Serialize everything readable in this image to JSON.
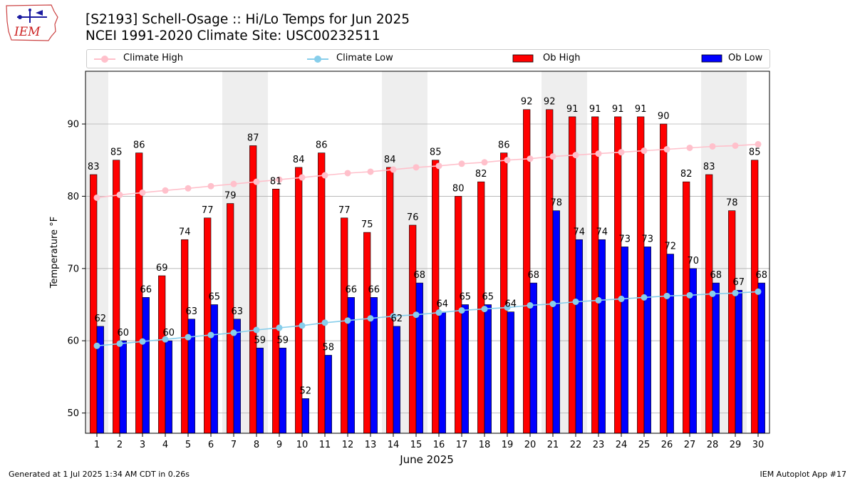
{
  "header": {
    "title_line1": "[S2193] Schell-Osage :: Hi/Lo Temps for Jun 2025",
    "title_line2": "NCEI 1991-2020 Climate Site: USC00232511",
    "logo_text": "IEM"
  },
  "footer": {
    "generated": "Generated at 1 Jul 2025 1:34 AM CDT in 0.26s",
    "app": "IEM Autoplot App #17"
  },
  "colors": {
    "ob_high": "#ff0000",
    "ob_low": "#0000ff",
    "climate_high": "#ffc0cb",
    "climate_low": "#87ceeb",
    "weekend_band": "#eeeeee",
    "grid": "#b0b0b0"
  },
  "chart_data": {
    "type": "bar",
    "title": "[S2193] Schell-Osage :: Hi/Lo Temps for Jun 2025",
    "xlabel": "June 2025",
    "ylabel": "Temperature °F",
    "ylim": [
      47.2,
      97.3
    ],
    "yticks": [
      50,
      60,
      70,
      80,
      90
    ],
    "grid": "y",
    "legend": "top",
    "categories": [
      "1",
      "2",
      "3",
      "4",
      "5",
      "6",
      "7",
      "8",
      "9",
      "10",
      "11",
      "12",
      "13",
      "14",
      "15",
      "16",
      "17",
      "18",
      "19",
      "20",
      "21",
      "22",
      "23",
      "24",
      "25",
      "26",
      "27",
      "28",
      "29",
      "30"
    ],
    "shaded_days": [
      1,
      7,
      8,
      14,
      15,
      21,
      22,
      28,
      29
    ],
    "series": [
      {
        "name": "Ob High",
        "type": "bar",
        "values": [
          83,
          85,
          86,
          69,
          74,
          77,
          79,
          87,
          81,
          84,
          86,
          77,
          75,
          84,
          76,
          85,
          80,
          82,
          86,
          92,
          92,
          91,
          91,
          91,
          91,
          90,
          82,
          83,
          78,
          85
        ],
        "labels": [
          "83",
          "85",
          "86",
          "69",
          "74",
          "77",
          "79",
          "87",
          "81",
          "84",
          "86",
          "77",
          "75",
          "84",
          "76",
          "85",
          "80",
          "82",
          "86",
          "92",
          "92",
          "91",
          "91",
          "91",
          "91",
          "90",
          "82",
          "83",
          "78",
          "85"
        ]
      },
      {
        "name": "Ob Low",
        "type": "bar",
        "values": [
          62,
          60,
          66,
          60,
          63,
          65,
          63,
          59,
          59,
          52,
          58,
          66,
          66,
          62,
          68,
          64,
          65,
          65,
          64,
          68,
          78,
          74,
          74,
          73,
          73,
          72,
          70,
          68,
          67,
          68
        ],
        "labels": [
          "62",
          "60",
          "66",
          "60",
          "63",
          "65",
          "63",
          "59",
          "59",
          "52",
          "58",
          "66",
          "66",
          "62",
          "68",
          "64",
          "65",
          "65",
          "64",
          "68",
          "78",
          "74",
          "74",
          "73",
          "73",
          "72",
          "70",
          "68",
          "67",
          "68"
        ]
      },
      {
        "name": "Climate High",
        "type": "line",
        "values": [
          79.8,
          80.2,
          80.5,
          80.8,
          81.1,
          81.4,
          81.7,
          82.0,
          82.3,
          82.6,
          82.9,
          83.2,
          83.4,
          83.7,
          84.0,
          84.2,
          84.5,
          84.7,
          85.0,
          85.2,
          85.5,
          85.7,
          85.9,
          86.1,
          86.3,
          86.5,
          86.7,
          86.9,
          87.0,
          87.2
        ]
      },
      {
        "name": "Climate Low",
        "type": "line",
        "values": [
          59.3,
          59.6,
          59.9,
          60.2,
          60.5,
          60.8,
          61.1,
          61.5,
          61.8,
          62.1,
          62.5,
          62.8,
          63.1,
          63.4,
          63.6,
          63.9,
          64.2,
          64.4,
          64.6,
          64.9,
          65.1,
          65.4,
          65.6,
          65.8,
          66.0,
          66.2,
          66.3,
          66.5,
          66.6,
          66.8
        ]
      }
    ]
  }
}
